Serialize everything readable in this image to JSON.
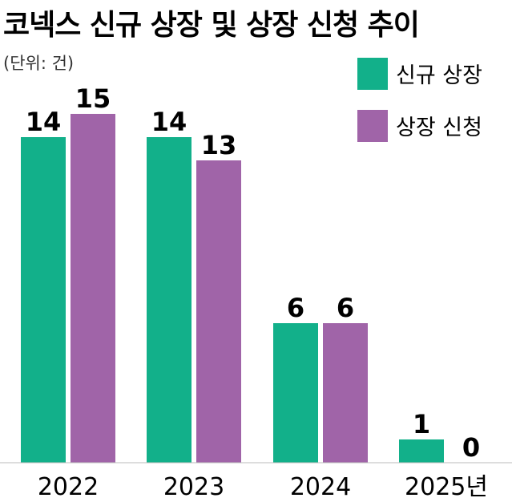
{
  "chart_data": {
    "type": "bar",
    "title": "코넥스 신규 상장 및 상장 신청 추이",
    "unit_label": "(단위: 건)",
    "categories": [
      "2022",
      "2023",
      "2024",
      "2025년"
    ],
    "series": [
      {
        "name": "신규 상장",
        "color": "#12b08a",
        "values": [
          14,
          14,
          6,
          1
        ]
      },
      {
        "name": "상장 신청",
        "color": "#a064a8",
        "values": [
          15,
          13,
          6,
          0
        ]
      }
    ],
    "ylim": [
      0,
      16
    ],
    "grid": false,
    "legend_position": "top-right"
  }
}
